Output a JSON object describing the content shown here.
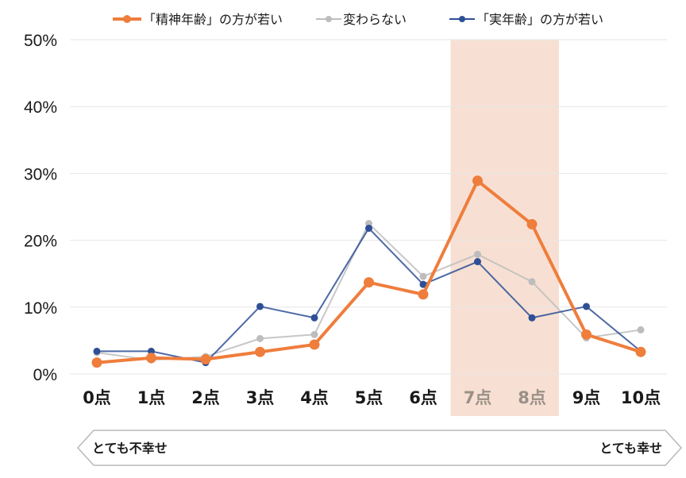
{
  "chart_data": {
    "type": "line",
    "categories": [
      "0点",
      "1点",
      "2点",
      "3点",
      "4点",
      "5点",
      "6点",
      "7点",
      "8点",
      "9点",
      "10点"
    ],
    "y_ticks": [
      "0%",
      "10%",
      "20%",
      "30%",
      "40%",
      "50%"
    ],
    "ylim": [
      0,
      50
    ],
    "y_unit": "%",
    "grid": true,
    "legend_position": "top",
    "highlight": {
      "categories": [
        "7点",
        "8点"
      ],
      "color": "#f7e0d3"
    },
    "series": [
      {
        "name": "「精神年齢」の方が若い",
        "color": "#ef7d3c",
        "values": [
          1.7,
          2.4,
          2.2,
          3.3,
          4.4,
          13.7,
          11.9,
          28.9,
          22.4,
          5.9,
          3.3
        ]
      },
      {
        "name": "変わらない",
        "color": "#bdbdbd",
        "values": [
          3.2,
          2.1,
          2.6,
          5.3,
          5.9,
          22.5,
          14.6,
          17.9,
          13.8,
          5.4,
          6.6
        ]
      },
      {
        "name": "「実年齢」の方が若い",
        "color": "#2e4f96",
        "values": [
          3.4,
          3.4,
          1.7,
          10.1,
          8.4,
          21.8,
          13.4,
          16.8,
          8.4,
          10.1,
          3.4
        ]
      }
    ],
    "scale_labels": {
      "left": "とても不幸せ",
      "right": "とても幸せ"
    }
  }
}
